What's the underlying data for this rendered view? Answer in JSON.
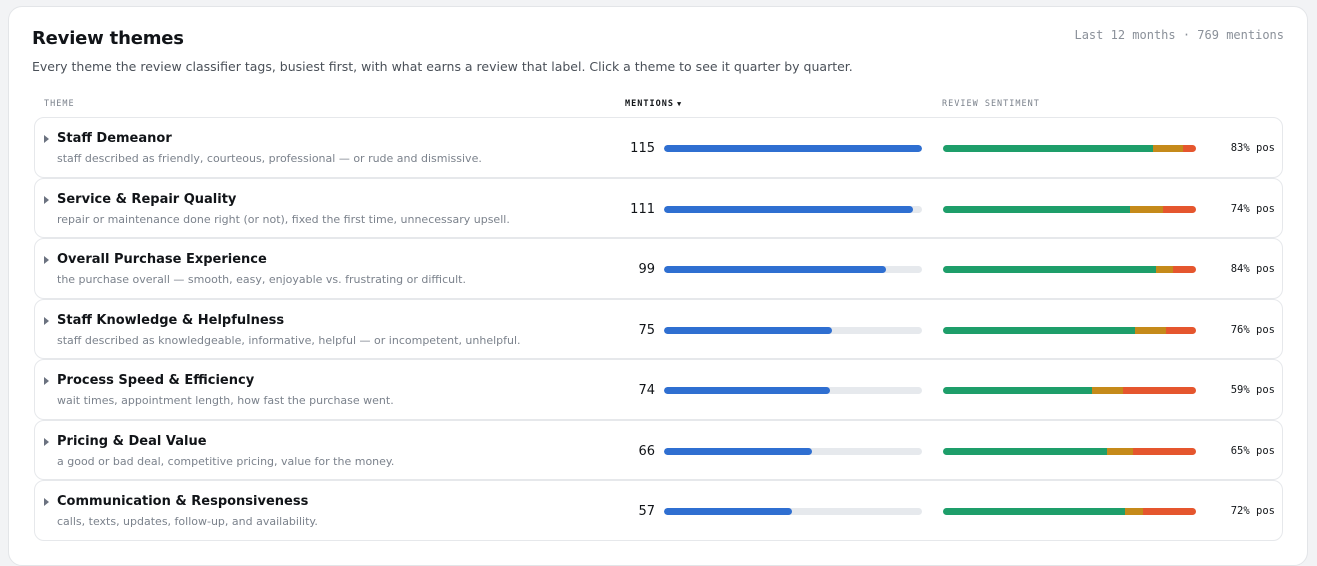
{
  "header": {
    "title": "Review themes",
    "meta": "Last 12 months · 769 mentions",
    "subtitle": "Every theme the review classifier tags, busiest first, with what earns a review that label. Click a theme to see it quarter by quarter."
  },
  "columns": {
    "theme": "THEME",
    "mentions": "MENTIONS",
    "mentions_sort_icon": "▼",
    "sentiment": "REVIEW SENTIMENT"
  },
  "colors": {
    "volume_bar": "#2f6fd1",
    "positive": "#1e9e6a",
    "neutral": "#c58a1a",
    "negative": "#e5562e"
  },
  "themes": [
    {
      "name": "Staff Demeanor",
      "description": "staff described as friendly, courteous, professional — or rude and dismissive.",
      "mentions": 115,
      "mentions_share": 1.0,
      "sentiment": {
        "positive": 0.83,
        "neutral": 0.12,
        "negative": 0.05
      },
      "pos_label": "83% pos"
    },
    {
      "name": "Service & Repair Quality",
      "description": "repair or maintenance done right (or not), fixed the first time, unnecessary upsell.",
      "mentions": 111,
      "mentions_share": 0.965,
      "sentiment": {
        "positive": 0.74,
        "neutral": 0.13,
        "negative": 0.13
      },
      "pos_label": "74% pos"
    },
    {
      "name": "Overall Purchase Experience",
      "description": "the purchase overall — smooth, easy, enjoyable vs. frustrating or difficult.",
      "mentions": 99,
      "mentions_share": 0.861,
      "sentiment": {
        "positive": 0.84,
        "neutral": 0.07,
        "negative": 0.09
      },
      "pos_label": "84% pos"
    },
    {
      "name": "Staff Knowledge & Helpfulness",
      "description": "staff described as knowledgeable, informative, helpful — or incompetent, unhelpful.",
      "mentions": 75,
      "mentions_share": 0.652,
      "sentiment": {
        "positive": 0.76,
        "neutral": 0.12,
        "negative": 0.12
      },
      "pos_label": "76% pos"
    },
    {
      "name": "Process Speed & Efficiency",
      "description": "wait times, appointment length, how fast the purchase went.",
      "mentions": 74,
      "mentions_share": 0.643,
      "sentiment": {
        "positive": 0.59,
        "neutral": 0.12,
        "negative": 0.29
      },
      "pos_label": "59% pos"
    },
    {
      "name": "Pricing & Deal Value",
      "description": "a good or bad deal, competitive pricing, value for the money.",
      "mentions": 66,
      "mentions_share": 0.574,
      "sentiment": {
        "positive": 0.65,
        "neutral": 0.1,
        "negative": 0.25
      },
      "pos_label": "65% pos"
    },
    {
      "name": "Communication & Responsiveness",
      "description": "calls, texts, updates, follow-up, and availability.",
      "mentions": 57,
      "mentions_share": 0.496,
      "sentiment": {
        "positive": 0.72,
        "neutral": 0.07,
        "negative": 0.21
      },
      "pos_label": "72% pos"
    }
  ]
}
